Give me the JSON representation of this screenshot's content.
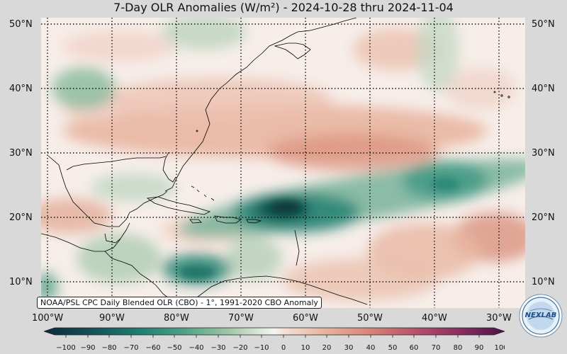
{
  "title": "7-Day OLR Anomalies (W/m²) - 2024-10-28 thru 2024-11-04",
  "map": {
    "lat_labels": [
      "50°N",
      "40°N",
      "30°N",
      "20°N",
      "10°N"
    ],
    "lon_labels": [
      "100°W",
      "90°W",
      "80°W",
      "70°W",
      "60°W",
      "50°W",
      "40°W",
      "30°W"
    ],
    "source_text": "NOAA/PSL CPC Daily Blended OLR (CBO) - 1°, 1991-2020 CBO Anomaly"
  },
  "colorbar": {
    "ticks": [
      "−100",
      "−90",
      "−80",
      "−70",
      "−60",
      "−50",
      "−40",
      "−30",
      "−20",
      "−10",
      "0",
      "10",
      "20",
      "30",
      "40",
      "50",
      "60",
      "70",
      "80",
      "90",
      "100"
    ]
  },
  "logo": {
    "text": "NEXLAB"
  },
  "colors": {
    "background": "#d9d9d9",
    "negative_strong": "#0e3d3a",
    "negative_mid": "#2e8b74",
    "neutral": "#f7f1ee",
    "positive_mid": "#d8917d",
    "positive_strong": "#6d1f4d"
  }
}
